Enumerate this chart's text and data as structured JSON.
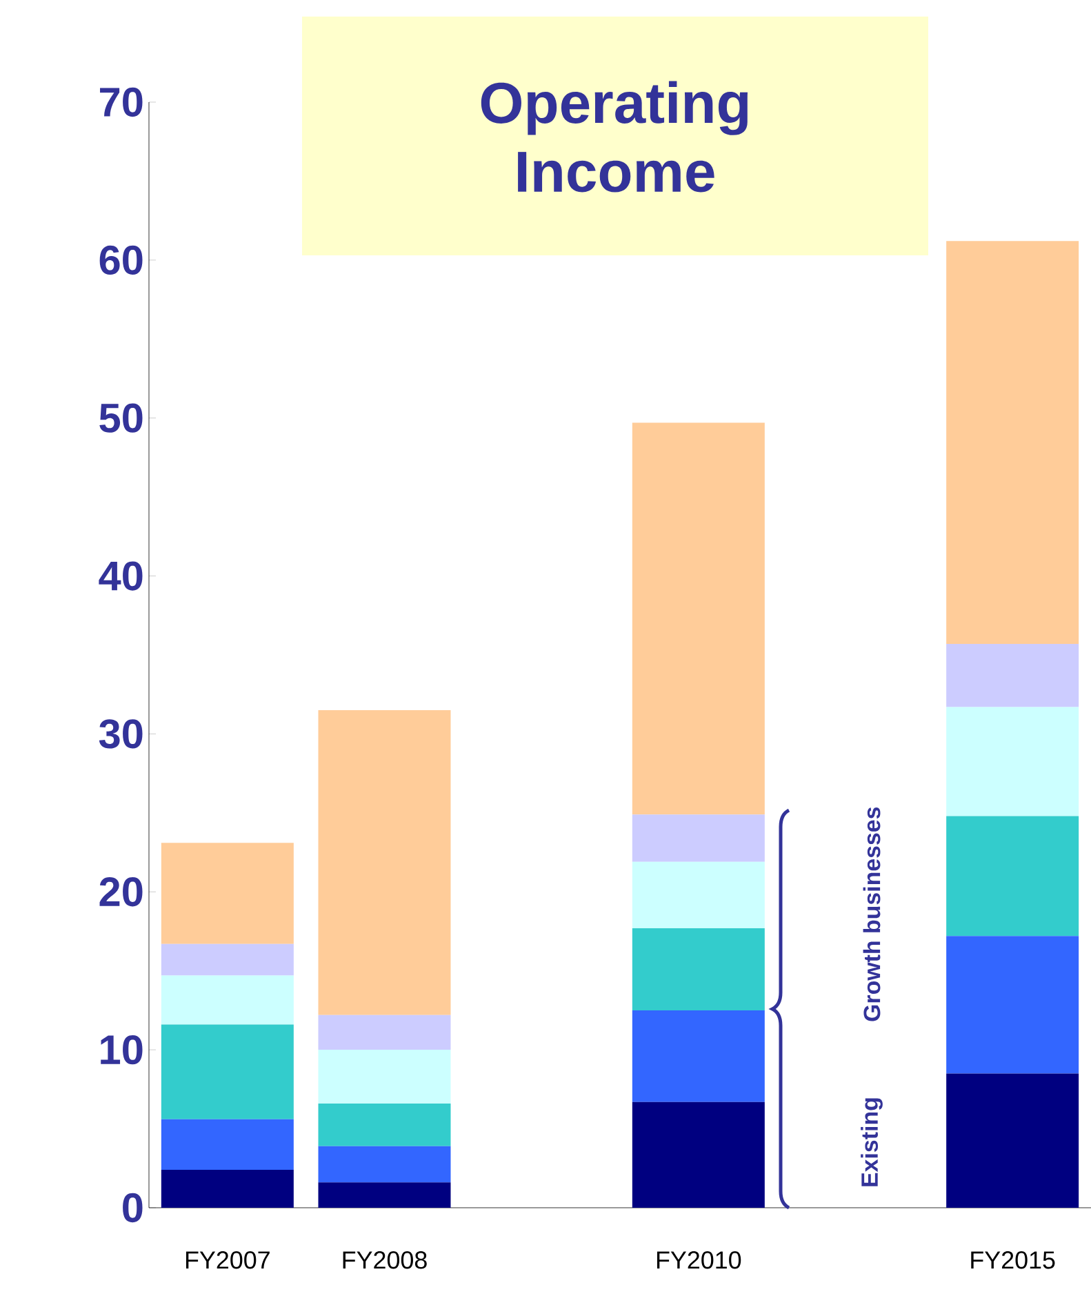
{
  "chart_data": {
    "type": "bar",
    "stacked": true,
    "title": "Operating Income",
    "categories": [
      "FY2007",
      "FY2008",
      null,
      "FY2010",
      null,
      "FY2015"
    ],
    "series": [
      {
        "color": "#000080",
        "values": [
          2.4,
          1.6,
          null,
          6.7,
          null,
          8.5
        ]
      },
      {
        "color": "#3366ff",
        "values": [
          3.2,
          2.3,
          null,
          5.8,
          null,
          8.7
        ]
      },
      {
        "color": "#33cccc",
        "values": [
          6.0,
          2.7,
          null,
          5.2,
          null,
          7.6
        ]
      },
      {
        "color": "#ccffff",
        "values": [
          3.1,
          3.4,
          null,
          4.2,
          null,
          6.9
        ]
      },
      {
        "color": "#ccccff",
        "values": [
          2.0,
          2.2,
          null,
          3.0,
          null,
          4.0
        ]
      },
      {
        "color": "#ffcc99",
        "values": [
          6.4,
          19.3,
          null,
          24.8,
          null,
          25.5
        ]
      }
    ],
    "ylim": [
      0,
      70
    ],
    "yticks": [
      0,
      10,
      20,
      30,
      40,
      50,
      60,
      70
    ],
    "annotations": [
      "Existing",
      "Growth businesses"
    ]
  }
}
